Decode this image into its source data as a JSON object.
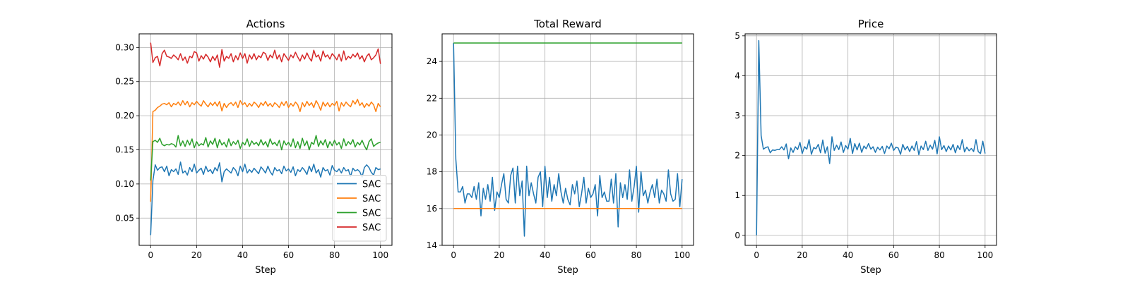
{
  "chart_data": [
    {
      "type": "line",
      "title": "Actions",
      "xlabel": "Step",
      "ylabel": "",
      "xlim": [
        -5,
        105
      ],
      "ylim": [
        0.01,
        0.32
      ],
      "xticks": [
        0,
        20,
        40,
        60,
        80,
        100
      ],
      "yticks": [
        0.05,
        0.1,
        0.15,
        0.2,
        0.25,
        0.3
      ],
      "ytick_labels": [
        "0.05",
        "0.10",
        "0.15",
        "0.20",
        "0.25",
        "0.30"
      ],
      "grid": true,
      "legend": "lower-right",
      "series": [
        {
          "name": "SAC",
          "color": "#1f77b4",
          "values": [
            0.025,
            0.105,
            0.128,
            0.12,
            0.124,
            0.125,
            0.118,
            0.126,
            0.112,
            0.121,
            0.118,
            0.122,
            0.114,
            0.132,
            0.116,
            0.119,
            0.113,
            0.124,
            0.118,
            0.129,
            0.116,
            0.12,
            0.123,
            0.114,
            0.126,
            0.118,
            0.121,
            0.115,
            0.124,
            0.119,
            0.131,
            0.103,
            0.118,
            0.122,
            0.119,
            0.116,
            0.124,
            0.12,
            0.112,
            0.126,
            0.118,
            0.129,
            0.116,
            0.121,
            0.117,
            0.123,
            0.119,
            0.115,
            0.125,
            0.121,
            0.116,
            0.126,
            0.118,
            0.113,
            0.124,
            0.119,
            0.121,
            0.115,
            0.126,
            0.119,
            0.122,
            0.117,
            0.125,
            0.112,
            0.121,
            0.118,
            0.124,
            0.12,
            0.114,
            0.126,
            0.118,
            0.129,
            0.116,
            0.121,
            0.11,
            0.124,
            0.119,
            0.121,
            0.113,
            0.127,
            0.12,
            0.118,
            0.122,
            0.116,
            0.124,
            0.119,
            0.121,
            0.111,
            0.123,
            0.119,
            0.121,
            0.118,
            0.11,
            0.124,
            0.128,
            0.124,
            0.117,
            0.113,
            0.124,
            0.121,
            0.122
          ]
        },
        {
          "name": "SAC",
          "color": "#ff7f0e",
          "values": [
            0.074,
            0.206,
            0.208,
            0.212,
            0.214,
            0.217,
            0.218,
            0.216,
            0.219,
            0.213,
            0.218,
            0.216,
            0.22,
            0.215,
            0.222,
            0.216,
            0.221,
            0.213,
            0.219,
            0.216,
            0.221,
            0.217,
            0.214,
            0.222,
            0.217,
            0.213,
            0.219,
            0.215,
            0.22,
            0.214,
            0.221,
            0.207,
            0.218,
            0.212,
            0.217,
            0.219,
            0.215,
            0.22,
            0.212,
            0.222,
            0.216,
            0.219,
            0.213,
            0.218,
            0.214,
            0.22,
            0.217,
            0.212,
            0.219,
            0.215,
            0.221,
            0.214,
            0.218,
            0.213,
            0.219,
            0.216,
            0.212,
            0.22,
            0.215,
            0.221,
            0.212,
            0.218,
            0.214,
            0.22,
            0.216,
            0.206,
            0.219,
            0.213,
            0.221,
            0.215,
            0.219,
            0.212,
            0.222,
            0.216,
            0.208,
            0.22,
            0.214,
            0.219,
            0.213,
            0.218,
            0.215,
            0.221,
            0.207,
            0.219,
            0.214,
            0.22,
            0.216,
            0.213,
            0.222,
            0.217,
            0.224,
            0.215,
            0.219,
            0.212,
            0.218,
            0.214,
            0.22,
            0.216,
            0.206,
            0.218,
            0.213
          ]
        },
        {
          "name": "SAC",
          "color": "#2ca02c",
          "values": [
            0.105,
            0.162,
            0.164,
            0.161,
            0.167,
            0.158,
            0.156,
            0.158,
            0.157,
            0.159,
            0.158,
            0.154,
            0.171,
            0.156,
            0.163,
            0.155,
            0.164,
            0.157,
            0.166,
            0.153,
            0.162,
            0.156,
            0.159,
            0.157,
            0.168,
            0.154,
            0.163,
            0.158,
            0.167,
            0.153,
            0.165,
            0.157,
            0.161,
            0.154,
            0.166,
            0.156,
            0.162,
            0.158,
            0.164,
            0.152,
            0.161,
            0.157,
            0.166,
            0.155,
            0.163,
            0.158,
            0.161,
            0.156,
            0.165,
            0.157,
            0.162,
            0.154,
            0.166,
            0.158,
            0.161,
            0.156,
            0.164,
            0.15,
            0.163,
            0.157,
            0.161,
            0.155,
            0.166,
            0.153,
            0.162,
            0.152,
            0.167,
            0.156,
            0.163,
            0.15,
            0.161,
            0.158,
            0.171,
            0.155,
            0.163,
            0.157,
            0.165,
            0.153,
            0.162,
            0.156,
            0.164,
            0.157,
            0.161,
            0.152,
            0.166,
            0.156,
            0.162,
            0.158,
            0.165,
            0.154,
            0.161,
            0.157,
            0.164,
            0.156,
            0.15,
            0.162,
            0.166,
            0.155,
            0.158,
            0.16,
            0.161
          ]
        },
        {
          "name": "SAC",
          "color": "#d62728",
          "values": [
            0.307,
            0.278,
            0.285,
            0.287,
            0.273,
            0.291,
            0.296,
            0.287,
            0.286,
            0.284,
            0.289,
            0.286,
            0.282,
            0.291,
            0.281,
            0.286,
            0.277,
            0.287,
            0.285,
            0.294,
            0.292,
            0.28,
            0.288,
            0.283,
            0.29,
            0.286,
            0.279,
            0.287,
            0.281,
            0.289,
            0.271,
            0.297,
            0.28,
            0.287,
            0.284,
            0.291,
            0.279,
            0.288,
            0.282,
            0.292,
            0.284,
            0.291,
            0.277,
            0.289,
            0.283,
            0.291,
            0.282,
            0.288,
            0.285,
            0.293,
            0.291,
            0.281,
            0.289,
            0.285,
            0.296,
            0.283,
            0.289,
            0.279,
            0.291,
            0.286,
            0.281,
            0.289,
            0.285,
            0.293,
            0.286,
            0.28,
            0.289,
            0.283,
            0.292,
            0.285,
            0.28,
            0.296,
            0.286,
            0.289,
            0.28,
            0.295,
            0.286,
            0.289,
            0.283,
            0.291,
            0.287,
            0.282,
            0.29,
            0.28,
            0.295,
            0.282,
            0.287,
            0.284,
            0.29,
            0.286,
            0.292,
            0.283,
            0.288,
            0.279,
            0.287,
            0.291,
            0.282,
            0.285,
            0.289,
            0.298,
            0.276
          ]
        }
      ]
    },
    {
      "type": "line",
      "title": "Total Reward",
      "xlabel": "Step",
      "ylabel": "",
      "xlim": [
        -5,
        105
      ],
      "ylim": [
        14,
        25.5
      ],
      "xticks": [
        0,
        20,
        40,
        60,
        80,
        100
      ],
      "yticks": [
        14,
        16,
        18,
        20,
        22,
        24
      ],
      "ytick_labels": [
        "14",
        "16",
        "18",
        "20",
        "22",
        "24"
      ],
      "grid": true,
      "legend": "none",
      "series": [
        {
          "name": "",
          "color": "#1f77b4",
          "values": [
            25.0,
            18.7,
            16.9,
            16.9,
            17.2,
            16.3,
            16.8,
            16.8,
            16.6,
            17.2,
            16.5,
            17.4,
            15.6,
            17.1,
            16.5,
            17.3,
            16.4,
            17.7,
            15.9,
            16.9,
            16.6,
            17.3,
            17.9,
            16.5,
            16.3,
            17.8,
            18.2,
            16.3,
            18.3,
            16.7,
            17.5,
            14.5,
            18.3,
            16.7,
            17.4,
            16.8,
            16.3,
            17.7,
            18.0,
            16.1,
            18.3,
            16.6,
            17.7,
            16.4,
            17.3,
            16.7,
            17.9,
            16.9,
            16.3,
            17.1,
            16.5,
            16.2,
            17.3,
            16.8,
            17.5,
            16.1,
            16.8,
            17.7,
            16.3,
            17.1,
            16.6,
            16.8,
            17.3,
            15.6,
            17.8,
            16.6,
            16.9,
            16.4,
            16.4,
            17.6,
            16.3,
            17.9,
            15.0,
            17.4,
            16.6,
            17.3,
            16.5,
            18.1,
            16.4,
            17.2,
            18.3,
            15.8,
            18.0,
            16.7,
            17.0,
            16.3,
            16.9,
            17.3,
            16.6,
            17.6,
            16.3,
            17.0,
            16.8,
            16.4,
            18.1,
            16.8,
            16.4,
            16.5,
            17.9,
            16.1,
            17.6
          ]
        },
        {
          "name": "",
          "color": "#ff7f0e",
          "values": [
            16.0,
            16.0
          ]
        },
        {
          "name": "",
          "color": "#2ca02c",
          "values": [
            25.0,
            25.0
          ]
        }
      ]
    },
    {
      "type": "line",
      "title": "Price",
      "xlabel": "Step",
      "ylabel": "",
      "xlim": [
        -5,
        105
      ],
      "ylim": [
        -0.25,
        5.05
      ],
      "xticks": [
        0,
        20,
        40,
        60,
        80,
        100
      ],
      "yticks": [
        0,
        1,
        2,
        3,
        4,
        5
      ],
      "ytick_labels": [
        "0",
        "1",
        "2",
        "3",
        "4",
        "5"
      ],
      "grid": true,
      "legend": "none",
      "series": [
        {
          "name": "",
          "color": "#1f77b4",
          "values": [
            0.0,
            4.88,
            2.5,
            2.16,
            2.2,
            2.22,
            2.07,
            2.14,
            2.13,
            2.15,
            2.15,
            2.22,
            2.14,
            2.29,
            1.92,
            2.19,
            2.08,
            2.22,
            2.15,
            2.33,
            2.05,
            2.22,
            2.16,
            2.4,
            2.03,
            2.2,
            2.17,
            2.28,
            2.07,
            2.39,
            2.06,
            2.22,
            1.8,
            2.47,
            2.13,
            2.26,
            2.15,
            2.34,
            2.08,
            2.25,
            2.16,
            2.43,
            2.05,
            2.3,
            2.14,
            2.31,
            2.08,
            2.24,
            2.17,
            2.3,
            2.16,
            2.22,
            2.08,
            2.21,
            2.14,
            2.23,
            2.05,
            2.24,
            2.17,
            2.31,
            2.13,
            2.21,
            2.19,
            2.03,
            2.28,
            2.14,
            2.23,
            2.1,
            2.24,
            2.13,
            2.35,
            2.02,
            2.24,
            2.15,
            2.36,
            2.13,
            2.26,
            2.16,
            2.38,
            2.04,
            2.47,
            2.15,
            2.25,
            2.1,
            2.24,
            2.14,
            2.28,
            2.07,
            2.25,
            2.15,
            2.4,
            2.09,
            2.21,
            2.12,
            2.18,
            2.1,
            2.4,
            2.1,
            2.05,
            2.36,
            2.05
          ]
        }
      ]
    }
  ]
}
